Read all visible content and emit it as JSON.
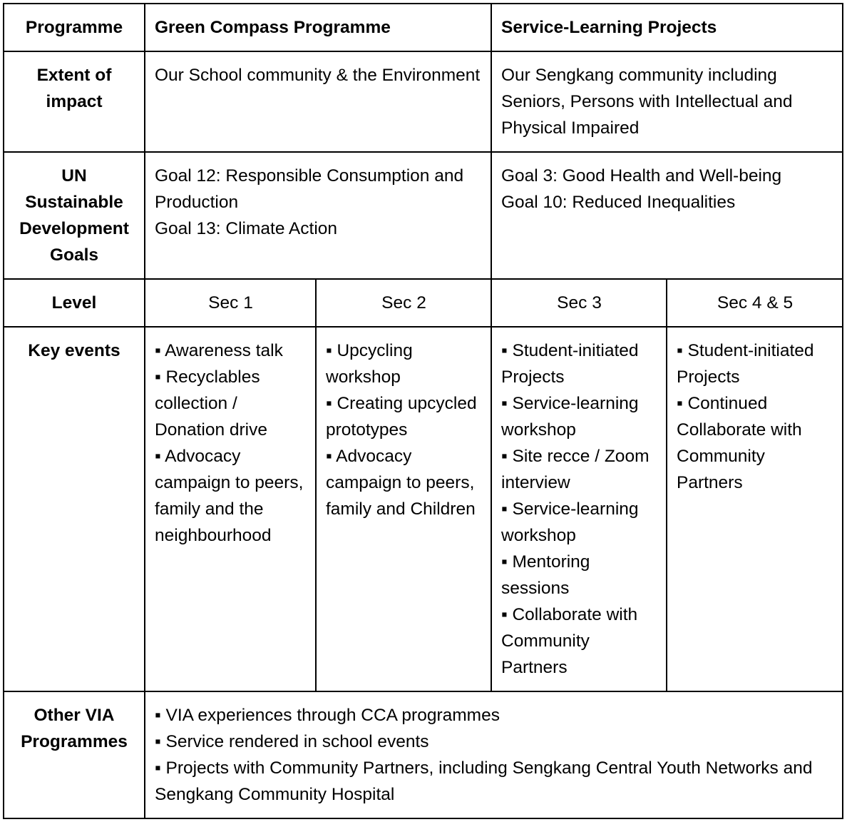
{
  "header": {
    "row_label": "Programme",
    "green_compass": "Green Compass Programme",
    "service_learning": "Service-Learning Projects"
  },
  "extent": {
    "label_lines": [
      "Extent of",
      "impact"
    ],
    "green_compass": "Our School community & the Environment",
    "service_learning": "Our Sengkang community including Seniors, Persons with Intellectual and Physical Impaired"
  },
  "sdg": {
    "label_lines": [
      "UN",
      "Sustainable",
      "Development",
      "Goals"
    ],
    "green_compass_goals": [
      "Goal 12: Responsible Consumption and Production",
      "Goal 13: Climate Action"
    ],
    "service_learning_goals": [
      "Goal 3: Good Health and Well-being",
      "Goal 10: Reduced Inequalities"
    ]
  },
  "level": {
    "label": "Level",
    "values": [
      "Sec 1",
      "Sec 2",
      "Sec 3",
      "Sec 4 & 5"
    ]
  },
  "key_events": {
    "label": "Key events",
    "sec1": [
      "▪ Awareness talk",
      "▪ Recyclables collection / Donation drive",
      "▪ Advocacy campaign to peers, family and the neighbourhood"
    ],
    "sec2": [
      "▪ Upcycling workshop",
      "▪ Creating upcycled prototypes",
      "▪ Advocacy campaign to peers, family and Children"
    ],
    "sec3": [
      "▪ Student-initiated Projects",
      "▪ Service-learning workshop",
      "▪ Site recce / Zoom interview",
      "▪ Service-learning workshop",
      "▪ Mentoring sessions",
      "▪ Collaborate with Community Partners"
    ],
    "sec45": [
      "▪ Student-initiated Projects",
      "▪ Continued Collaborate with Community Partners"
    ]
  },
  "other_via": {
    "label_lines": [
      "Other VIA",
      "Programmes"
    ],
    "items": [
      "▪ VIA experiences through CCA programmes",
      "▪ Service rendered in school events",
      "▪ Projects with Community Partners, including Sengkang Central Youth Networks and Sengkang Community Hospital"
    ]
  }
}
